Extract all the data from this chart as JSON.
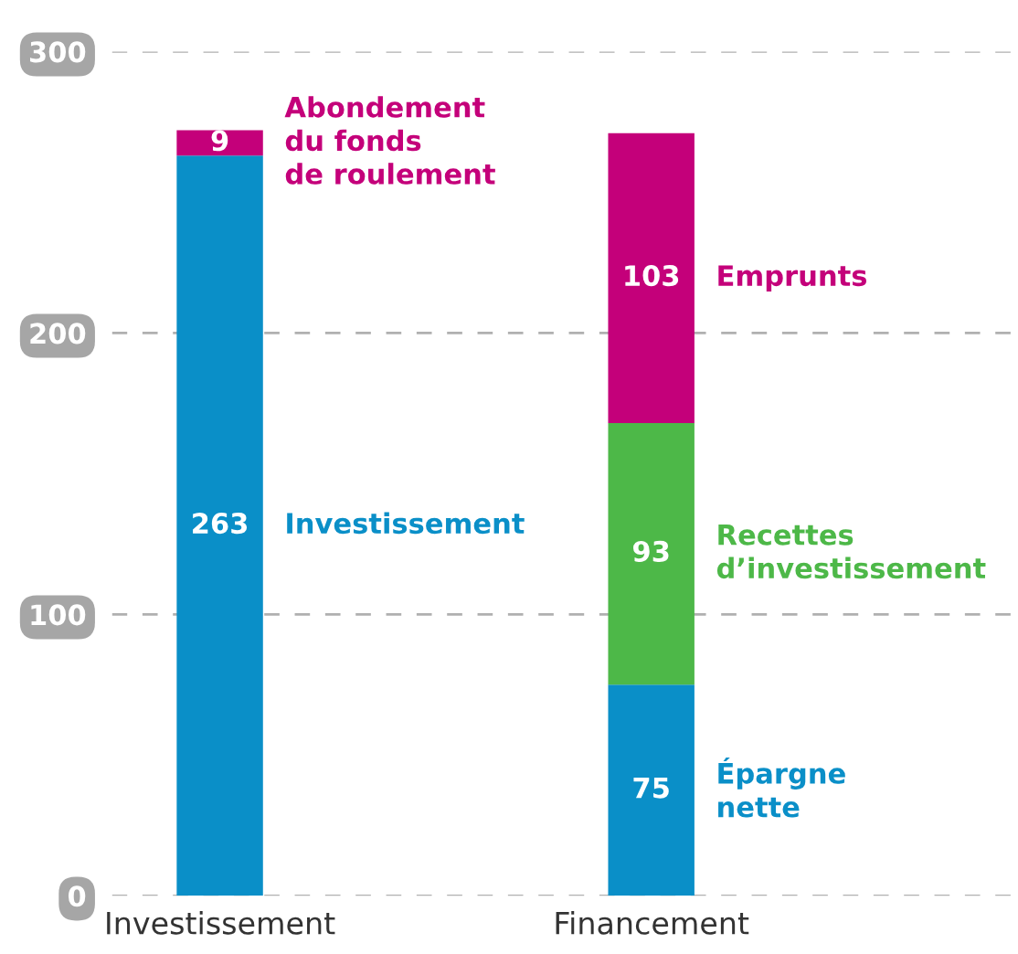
{
  "chart_data": {
    "type": "bar",
    "stacked": true,
    "categories": [
      "Investissement",
      "Financement"
    ],
    "series": [
      {
        "name": "Investissement",
        "color": "#0a8fc8",
        "values": [
          263,
          null
        ]
      },
      {
        "name": "Épargne\nnette",
        "color": "#0a8fc8",
        "values": [
          null,
          75
        ]
      },
      {
        "name": "Recettes\nd’investissement",
        "color": "#4db848",
        "values": [
          null,
          93
        ]
      },
      {
        "name": "Abondement\ndu fonds\nde roulement",
        "color": "#c4007a",
        "values": [
          9,
          null
        ]
      },
      {
        "name": "Emprunts",
        "color": "#c4007a",
        "values": [
          null,
          103
        ]
      }
    ],
    "ylim": [
      0,
      300
    ],
    "yticks": [
      0,
      100,
      200,
      300
    ],
    "grid": "y",
    "data_labels": true,
    "legend": false
  }
}
